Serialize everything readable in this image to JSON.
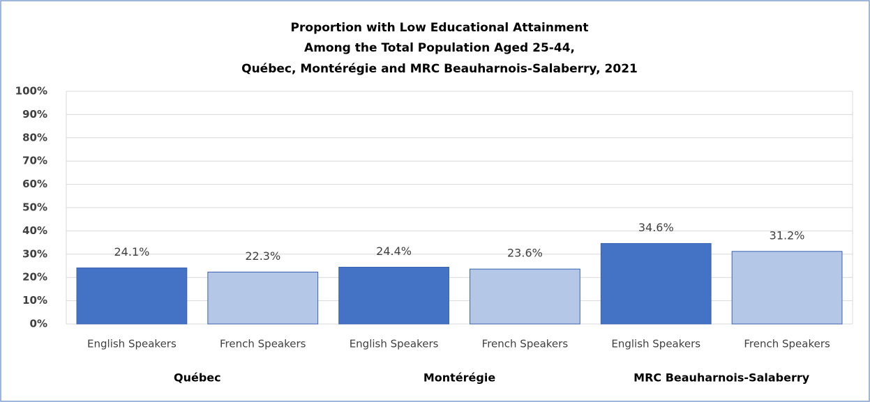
{
  "chart_data": {
    "type": "bar",
    "title": [
      "Proportion with Low Educational  Attainment",
      "Among the Total Population Aged 25-44,",
      "Québec, Montérégie and MRC Beauharnois-Salaberry,  2021"
    ],
    "categories": [
      "English Speakers",
      "French Speakers",
      "English Speakers",
      "French Speakers",
      "English Speakers",
      "French Speakers"
    ],
    "groups": [
      "Québec",
      "Montérégie",
      "MRC Beauharnois-Salaberry"
    ],
    "values": [
      24.1,
      22.3,
      24.4,
      23.6,
      34.6,
      31.2
    ],
    "value_labels": [
      "24.1%",
      "22.3%",
      "24.4%",
      "23.6%",
      "34.6%",
      "31.2%"
    ],
    "colors": [
      "#4472c4",
      "#b4c7e7",
      "#4472c4",
      "#b4c7e7",
      "#4472c4",
      "#b4c7e7"
    ],
    "ylim": [
      0,
      100
    ],
    "yticks": [
      {
        "value": 0,
        "label": "0%"
      },
      {
        "value": 10,
        "label": "10%"
      },
      {
        "value": 20,
        "label": "20%"
      },
      {
        "value": 30,
        "label": "30%"
      },
      {
        "value": 40,
        "label": "40%"
      },
      {
        "value": 50,
        "label": "50%"
      },
      {
        "value": 60,
        "label": "60%"
      },
      {
        "value": 70,
        "label": "70%"
      },
      {
        "value": 80,
        "label": "80%"
      },
      {
        "value": 90,
        "label": "90%"
      },
      {
        "value": 100,
        "label": "100%"
      }
    ],
    "grid": true
  }
}
